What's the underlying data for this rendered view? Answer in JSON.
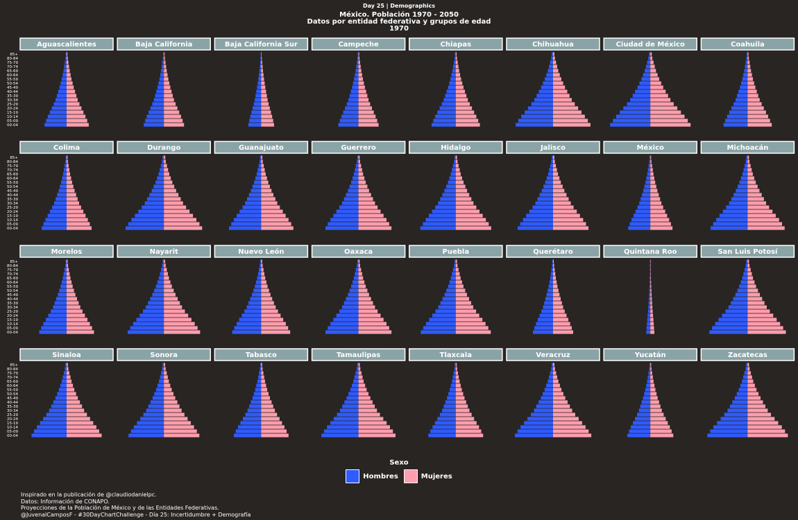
{
  "header": {
    "tag": "Day 25 | Demographics",
    "title_line1": "México. Población 1970 - 2050",
    "title_line2": "Datos por entidad federativa y grupos de edad",
    "title_line3": "1970"
  },
  "legend": {
    "title": "Sexo",
    "items": [
      {
        "label": "Hombres",
        "color": "#2f5bff"
      },
      {
        "label": "Mujeres",
        "color": "#ff9eae"
      }
    ]
  },
  "caption": [
    "Inspirado en la publicación de @claudiodanielpc.",
    "Datos: Información de CONAPO.",
    "Proyecciones de la Población de México y de las Entidades Federativas.",
    "@JuvenalCamposF - #30DayChartChallenge - Día 25: Incertidumbre + Demografía"
  ],
  "chart_data": {
    "type": "bar",
    "orientation": "horizontal",
    "layout": "population pyramid small multiples, 4 rows x 8 columns",
    "grid": false,
    "legend_position": "bottom",
    "age_groups": [
      "00-04",
      "05-09",
      "10-14",
      "15-19",
      "20-24",
      "25-29",
      "30-34",
      "35-39",
      "40-44",
      "45-49",
      "50-54",
      "55-59",
      "60-64",
      "65-69",
      "70-74",
      "75-79",
      "80-84",
      "85+"
    ],
    "colors": {
      "Hombres": "#2f5bff",
      "Mujeres": "#ff9eae",
      "strip": "#8aa3a6"
    },
    "values_note": "relative bar half-widths (males and females approximately symmetric), estimated from the picture",
    "states": [
      {
        "name": "Aguascalientes",
        "base": 0.55
      },
      {
        "name": "Baja California",
        "base": 0.5
      },
      {
        "name": "Baja California Sur",
        "base": 0.32
      },
      {
        "name": "Campeche",
        "base": 0.5
      },
      {
        "name": "Chiapas",
        "base": 0.6
      },
      {
        "name": "Chihuahua",
        "base": 0.93
      },
      {
        "name": "Ciudad de México",
        "base": 1.0
      },
      {
        "name": "Coahuila",
        "base": 0.6
      },
      {
        "name": "Colima",
        "base": 0.62
      },
      {
        "name": "Durango",
        "base": 0.95
      },
      {
        "name": "Guanajuato",
        "base": 0.8
      },
      {
        "name": "Guerrero",
        "base": 0.82
      },
      {
        "name": "Hidalgo",
        "base": 0.88
      },
      {
        "name": "Jalisco",
        "base": 0.88
      },
      {
        "name": "México",
        "base": 0.55
      },
      {
        "name": "Michoacán",
        "base": 0.92
      },
      {
        "name": "Morelos",
        "base": 0.68
      },
      {
        "name": "Nayarit",
        "base": 0.9
      },
      {
        "name": "Nuevo León",
        "base": 0.72
      },
      {
        "name": "Oaxaca",
        "base": 0.82
      },
      {
        "name": "Puebla",
        "base": 0.87
      },
      {
        "name": "Querétaro",
        "base": 0.5
      },
      {
        "name": "Quintana Roo",
        "base": 0.1
      },
      {
        "name": "San Luis Potosí",
        "base": 0.95
      },
      {
        "name": "Sinaloa",
        "base": 0.87
      },
      {
        "name": "Sonora",
        "base": 0.88
      },
      {
        "name": "Tabasco",
        "base": 0.68
      },
      {
        "name": "Tamaulipas",
        "base": 0.92
      },
      {
        "name": "Tlaxcala",
        "base": 0.68
      },
      {
        "name": "Veracruz",
        "base": 0.95
      },
      {
        "name": "Yucatán",
        "base": 0.57
      },
      {
        "name": "Zacatecas",
        "base": 1.0
      }
    ],
    "age_profile": [
      1.0,
      0.93,
      0.85,
      0.76,
      0.67,
      0.58,
      0.5,
      0.44,
      0.38,
      0.32,
      0.27,
      0.22,
      0.18,
      0.14,
      0.11,
      0.08,
      0.05,
      0.035
    ]
  }
}
